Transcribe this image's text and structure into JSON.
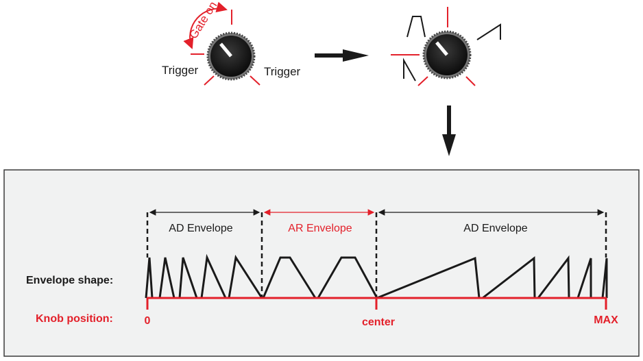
{
  "top": {
    "gate_on": "Gate on",
    "trigger_left": "Trigger",
    "trigger_right": "Trigger"
  },
  "panel": {
    "region_left": "AD Envelope",
    "region_middle": "AR Envelope",
    "region_right": "AD Envelope",
    "envelope_shape_label": "Envelope shape:",
    "knob_position_label": "Knob position:",
    "pos_zero": "0",
    "pos_center": "center",
    "pos_max": "MAX"
  },
  "colors": {
    "accent": "#e3202a",
    "ink": "#1a1a1a",
    "panel_bg": "#f1f2f2"
  }
}
